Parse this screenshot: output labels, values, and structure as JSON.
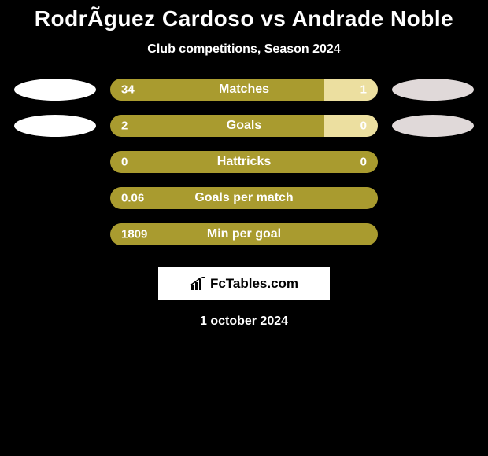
{
  "title": "RodrÃ­guez Cardoso vs Andrade Noble",
  "subtitle": "Club competitions, Season 2024",
  "date": "1 october 2024",
  "logo_text": "FcTables.com",
  "colors": {
    "background": "#000000",
    "text": "#ffffff",
    "bar_left": "#a99b2f",
    "bar_right": "#d1b94e",
    "bar_right_light": "#e8d98e",
    "ellipse_left": "#ffffff",
    "ellipse_right": "#d9d2d2"
  },
  "rows": [
    {
      "label": "Matches",
      "left_value": "34",
      "right_value": "1",
      "left_pct": 80,
      "right_pct": 20,
      "left_color": "#a99b2f",
      "right_color": "#ecdfa0",
      "show_ellipse": true,
      "ellipse_left_color": "#ffffff",
      "ellipse_right_color": "#e0d9d9"
    },
    {
      "label": "Goals",
      "left_value": "2",
      "right_value": "0",
      "left_pct": 80,
      "right_pct": 20,
      "left_color": "#a99b2f",
      "right_color": "#ecdfa0",
      "show_ellipse": true,
      "ellipse_left_color": "#ffffff",
      "ellipse_right_color": "#e0d9d9"
    },
    {
      "label": "Hattricks",
      "left_value": "0",
      "right_value": "0",
      "left_pct": 100,
      "right_pct": 0,
      "left_color": "#a99b2f",
      "right_color": "#ecdfa0",
      "show_ellipse": false,
      "ellipse_left_color": "#ffffff",
      "ellipse_right_color": "#e0d9d9"
    },
    {
      "label": "Goals per match",
      "left_value": "0.06",
      "right_value": "",
      "left_pct": 100,
      "right_pct": 0,
      "left_color": "#a99b2f",
      "right_color": "#ecdfa0",
      "show_ellipse": false,
      "ellipse_left_color": "#ffffff",
      "ellipse_right_color": "#e0d9d9"
    },
    {
      "label": "Min per goal",
      "left_value": "1809",
      "right_value": "",
      "left_pct": 100,
      "right_pct": 0,
      "left_color": "#a99b2f",
      "right_color": "#ecdfa0",
      "show_ellipse": false,
      "ellipse_left_color": "#ffffff",
      "ellipse_right_color": "#e0d9d9"
    }
  ]
}
